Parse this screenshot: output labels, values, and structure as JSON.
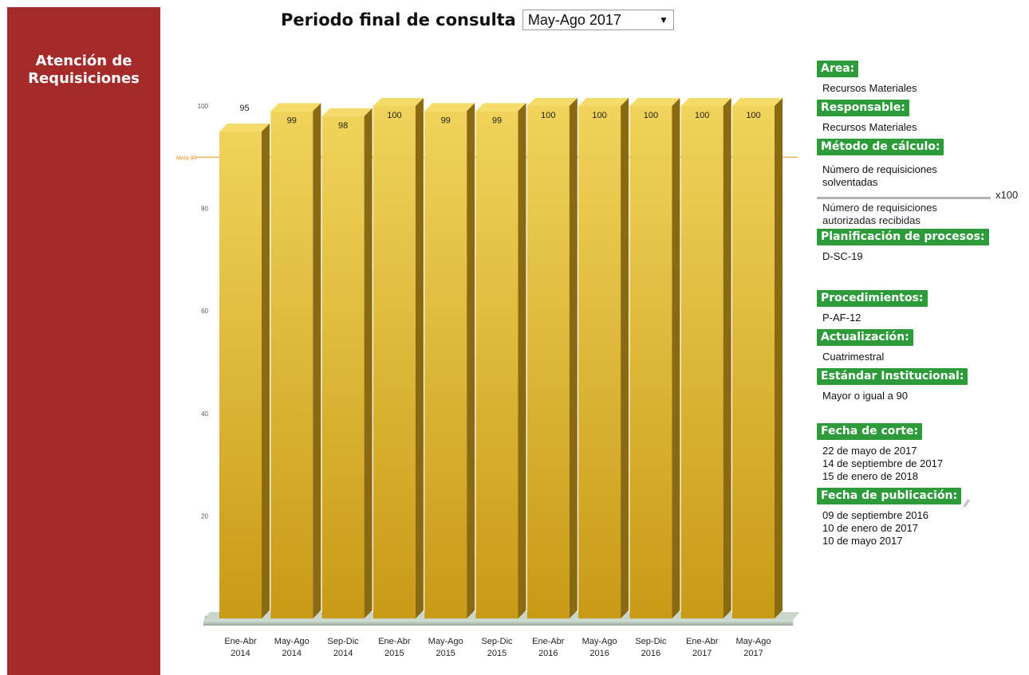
{
  "sidebar": {
    "title": "Atención de\nRequisiciones"
  },
  "header": {
    "label": "Periodo final de consulta",
    "selected_period": "May-Ago 2017"
  },
  "info": {
    "area_label": "Area:",
    "area_value": "Recursos Materiales",
    "responsable_label": "Responsable:",
    "responsable_value": "Recursos Materiales",
    "metodo_label": "Método de cálculo:",
    "numerator": "Número de requisiciones\nsolventadas",
    "denominator": "Número de requisiciones\nautorizadas recibidas",
    "multiplier": "x100",
    "planificacion_label": "Planificación de procesos:",
    "planificacion_value": "D-SC-19",
    "procedimientos_label": "Procedimientos:",
    "procedimientos_value": "P-AF-12",
    "actualizacion_label": "Actualización:",
    "actualizacion_value": "Cuatrimestral",
    "estandar_label": "Estándar Institucional:",
    "estandar_value": "Mayor o igual a 90",
    "corte_label": "Fecha de corte:",
    "corte_values": "22 de mayo de 2017\n14 de septiembre de 2017\n15 de enero de 2018",
    "publicacion_label": "Fecha de publicación:",
    "publicacion_values": "09 de septiembre 2016\n10 de enero de 2017\n10 de mayo 2017"
  },
  "colors": {
    "sidebar": "#a52a2a",
    "tag": "#2e9b3b",
    "bar_light": "#f0d35a",
    "bar_dark": "#c99a16",
    "goal_line": "#e8891a"
  },
  "chart_data": {
    "type": "bar",
    "categories": [
      [
        "Ene-Abr",
        "2014"
      ],
      [
        "May-Ago",
        "2014"
      ],
      [
        "Sep-Dic",
        "2014"
      ],
      [
        "Ene-Abr",
        "2015"
      ],
      [
        "May-Ago",
        "2015"
      ],
      [
        "Sep-Dic",
        "2015"
      ],
      [
        "Ene-Abr",
        "2016"
      ],
      [
        "May-Ago",
        "2016"
      ],
      [
        "Sep-Dic",
        "2016"
      ],
      [
        "Ene-Abr",
        "2017"
      ],
      [
        "May-Ago",
        "2017"
      ]
    ],
    "values": [
      95,
      99,
      98,
      100,
      99,
      99,
      100,
      100,
      100,
      100,
      100
    ],
    "ylim": [
      0,
      100
    ],
    "yticks": [
      0,
      20,
      40,
      60,
      80,
      100
    ],
    "goal": {
      "label": "Meta 90",
      "value": 90
    }
  }
}
